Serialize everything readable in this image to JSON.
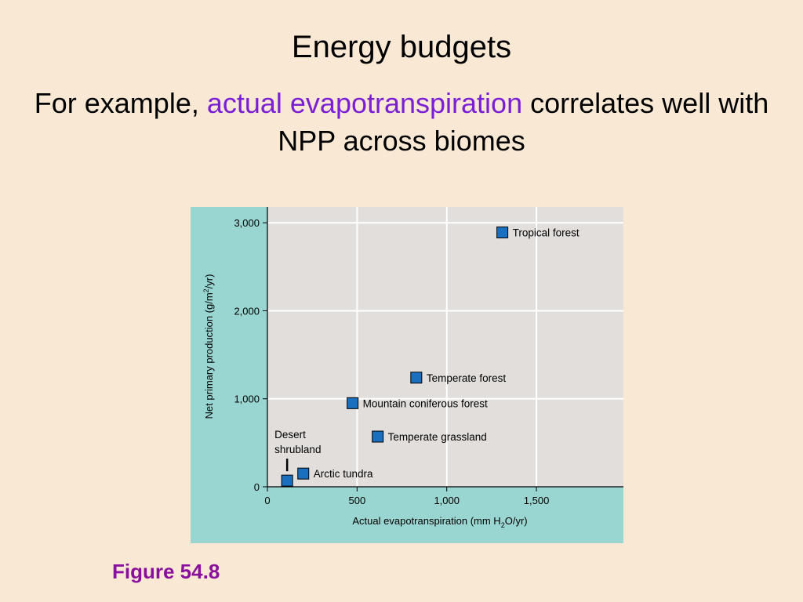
{
  "slide": {
    "title": "Energy budgets",
    "subtitle_prefix": "For example, ",
    "subtitle_highlight": "actual evapotranspiration",
    "subtitle_suffix": " correlates well with NPP across biomes",
    "figure_caption": "Figure 54.8"
  },
  "colors": {
    "background": "#f9e9d4",
    "highlight": "#7a1fd6",
    "caption": "#8a0f9c",
    "chart_outer": "#99d6d1",
    "plot_area": "#e2dedb",
    "marker": "#1a6fbf"
  },
  "chart_data": {
    "type": "scatter",
    "xlabel": "Actual evapotranspiration (mm H",
    "xlabel_sub": "2",
    "xlabel_end": "O/yr)",
    "ylabel": "Net primary production (g/m",
    "ylabel_sup": "2",
    "ylabel_end": "/yr)",
    "xlim": [
      0,
      1985
    ],
    "ylim": [
      0,
      3180
    ],
    "xticks": [
      0,
      500,
      1000,
      1500
    ],
    "xtick_labels": [
      "0",
      "500",
      "1,000",
      "1,500"
    ],
    "yticks": [
      0,
      1000,
      2000,
      3000
    ],
    "ytick_labels": [
      "0",
      "1,000",
      "2,000",
      "3,000"
    ],
    "grid": true,
    "points": [
      {
        "label": "Tropical forest",
        "x": 1310,
        "y": 2890,
        "label_pos": "right"
      },
      {
        "label": "Temperate forest",
        "x": 830,
        "y": 1240,
        "label_pos": "right"
      },
      {
        "label": "Mountain coniferous forest",
        "x": 475,
        "y": 950,
        "label_pos": "right"
      },
      {
        "label": "Temperate grassland",
        "x": 615,
        "y": 570,
        "label_pos": "right"
      },
      {
        "label": "Arctic tundra",
        "x": 200,
        "y": 150,
        "label_pos": "right"
      },
      {
        "label": "Desert shrubland",
        "label_lines": [
          "Desert",
          "shrubland"
        ],
        "x": 110,
        "y": 70,
        "label_pos": "above"
      }
    ]
  }
}
